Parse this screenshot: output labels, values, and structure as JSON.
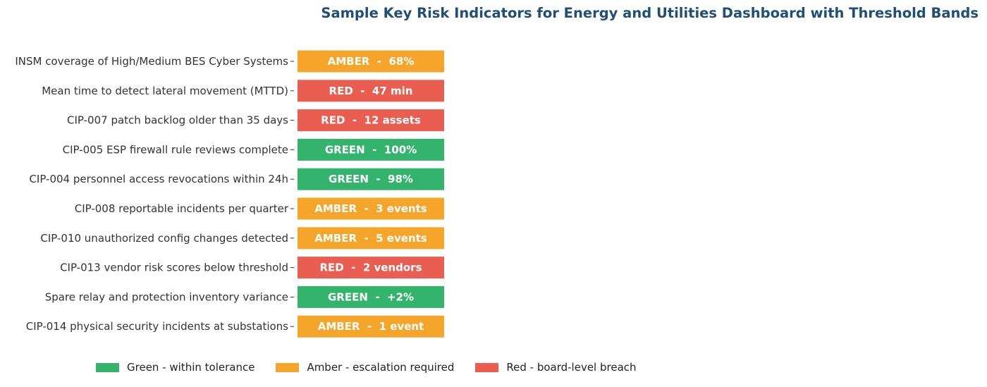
{
  "chart_data": {
    "type": "table",
    "title": "Sample Key Risk Indicators for Energy and Utilities Dashboard with Threshold Bands",
    "rows": [
      {
        "label": "INSM coverage of High/Medium BES Cyber Systems",
        "status": "AMBER",
        "value": "68%"
      },
      {
        "label": "Mean time to detect lateral movement (MTTD)",
        "status": "RED",
        "value": "47 min"
      },
      {
        "label": "CIP-007 patch backlog older than 35 days",
        "status": "RED",
        "value": "12 assets"
      },
      {
        "label": "CIP-005 ESP firewall rule reviews complete",
        "status": "GREEN",
        "value": "100%"
      },
      {
        "label": "CIP-004 personnel access revocations within 24h",
        "status": "GREEN",
        "value": "98%"
      },
      {
        "label": "CIP-008 reportable incidents per quarter",
        "status": "AMBER",
        "value": "3 events"
      },
      {
        "label": "CIP-010 unauthorized config changes detected",
        "status": "AMBER",
        "value": "5 events"
      },
      {
        "label": "CIP-013 vendor risk scores below threshold",
        "status": "RED",
        "value": "2 vendors"
      },
      {
        "label": "Spare relay and protection inventory variance",
        "status": "GREEN",
        "value": "+2%"
      },
      {
        "label": "CIP-014 physical security incidents at substations",
        "status": "AMBER",
        "value": "1 event"
      }
    ],
    "legend": [
      {
        "status": "GREEN",
        "label": "Green - within tolerance"
      },
      {
        "status": "AMBER",
        "label": "Amber - escalation required"
      },
      {
        "status": "RED",
        "label": "Red - board-level breach"
      }
    ],
    "legend_placement": "bottom",
    "grid": false
  },
  "colors": {
    "GREEN": "#33b36b",
    "AMBER": "#f5a52a",
    "RED": "#e95e51",
    "title": "#1f4e79",
    "label": "#333333"
  }
}
